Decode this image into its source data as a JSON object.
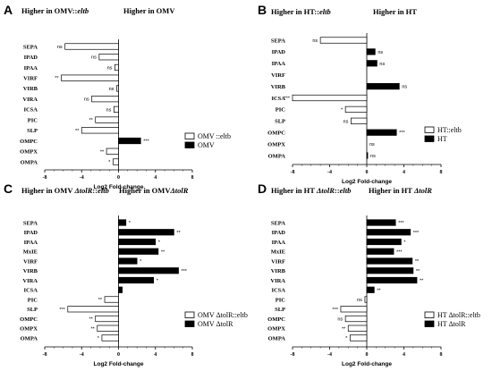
{
  "chart_data": [
    {
      "type": "bar",
      "panel_label": "A",
      "header_left": "Higher in OMV::eltb",
      "header_right": "Higher in OMV",
      "xlabel": "Log2 Fold-change",
      "xlim": [
        -8,
        8
      ],
      "xticks": [
        "-8",
        "-4",
        "0",
        "4",
        "8"
      ],
      "legend_placement": "bottom-right",
      "series": [
        {
          "name": "OMV ::eltb",
          "color": "#ffffff"
        },
        {
          "name": "OMV",
          "color": "#000000"
        }
      ],
      "categories": [
        "SEPA",
        "IPAD",
        "IPAA",
        "VIRF",
        "VIRB",
        "VIRA",
        "ICSA",
        "PIC",
        "SLP",
        "OMPC",
        "OMPX",
        "OMPA"
      ],
      "values": [
        -5.8,
        -2.1,
        -0.4,
        -6.2,
        -0.2,
        -2.9,
        -0.5,
        -2.5,
        -4.0,
        2.4,
        -1.3,
        -0.6
      ],
      "sig": [
        "ns",
        "ns",
        "ns",
        "**",
        "ns",
        "ns",
        "ns",
        "**",
        "**",
        "***",
        "**",
        "*"
      ]
    },
    {
      "type": "bar",
      "panel_label": "B",
      "header_left": "Higher in HT::eltb",
      "header_right": "Higher in HT",
      "xlabel": "Log2 Fold-change",
      "xlim": [
        -8,
        8
      ],
      "xticks": [
        "-8",
        "-4",
        "0",
        "4",
        "8"
      ],
      "legend_placement": "bottom-right",
      "series": [
        {
          "name": "HT::eltb",
          "color": "#ffffff"
        },
        {
          "name": "HT",
          "color": "#000000"
        }
      ],
      "categories": [
        "SEPA",
        "IPAD",
        "IPAA",
        "VIRF",
        "VIRB",
        "ICSA",
        "PIC",
        "SLP",
        "OMPC",
        "OMPX",
        "OMPA"
      ],
      "values": [
        -5.0,
        0.9,
        1.1,
        0.0,
        3.5,
        -8.0,
        -2.3,
        -1.7,
        3.2,
        0.0,
        0.1
      ],
      "sig": [
        "ns",
        "ns",
        "ns",
        "",
        "ns",
        "***",
        "*",
        "ns",
        "***",
        "ns",
        "ns"
      ]
    },
    {
      "type": "bar",
      "panel_label": "C",
      "header_left": "Higher in OMV ΔtolR::eltb",
      "header_right": "Higher in OMVΔtolR",
      "xlabel": "Log2 Fold-change",
      "xlim": [
        -8,
        8
      ],
      "xticks": [
        "-8",
        "-4",
        "0",
        "4",
        "8"
      ],
      "legend_placement": "bottom-right",
      "series": [
        {
          "name": "OMV ΔtolR::eltb",
          "color": "#ffffff"
        },
        {
          "name": "OMV ΔtolR",
          "color": "#000000"
        }
      ],
      "categories": [
        "SEPA",
        "IPAD",
        "IPAA",
        "MxIE",
        "VIRF",
        "VIRB",
        "VIRA",
        "ICSA",
        "PIC",
        "SLP",
        "OMPC",
        "OMPX",
        "OMPA"
      ],
      "values": [
        0.8,
        6.0,
        4.0,
        4.3,
        2.0,
        6.5,
        3.8,
        0.4,
        -1.5,
        -5.5,
        -2.5,
        -2.3,
        -1.8
      ],
      "sig": [
        "*",
        "**",
        "*",
        "**",
        "*",
        "***",
        "*",
        "",
        "**",
        "***",
        "**",
        "**",
        "*"
      ]
    },
    {
      "type": "bar",
      "panel_label": "D",
      "header_left": "Higher in HT ΔtolR::eltb",
      "header_right": "Higher in HT ΔtolR",
      "xlabel": "Log2 Fold-change",
      "xlim": [
        -8,
        8
      ],
      "xticks": [
        "-8",
        "-4",
        "0",
        "4",
        "8"
      ],
      "legend_placement": "bottom-right",
      "series": [
        {
          "name": "HT ΔtolR::eltb",
          "color": "#ffffff"
        },
        {
          "name": "HT ΔtolR",
          "color": "#000000"
        }
      ],
      "categories": [
        "SEPA",
        "IPAD",
        "IPAA",
        "MxIE",
        "VIRF",
        "VIRB",
        "VIRA",
        "ICSA",
        "PIC",
        "SLP",
        "OMPC",
        "OMPX",
        "OMPA"
      ],
      "values": [
        3.1,
        4.7,
        3.7,
        2.9,
        4.9,
        5.0,
        5.4,
        0.8,
        -0.2,
        -2.8,
        -2.3,
        -2.0,
        -1.8
      ],
      "sig": [
        "***",
        "***",
        "*",
        "***",
        "**",
        "**",
        "**",
        "**",
        "ns",
        "***",
        "ns",
        "**",
        "*"
      ]
    }
  ]
}
